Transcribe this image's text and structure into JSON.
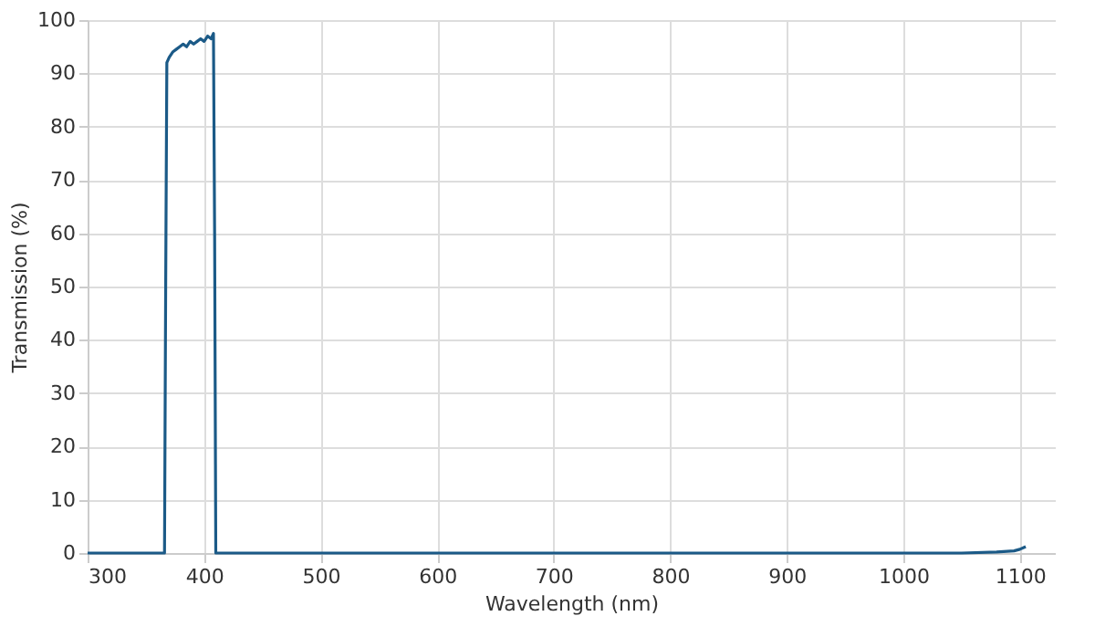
{
  "chart_data": {
    "type": "line",
    "xlabel": "Wavelength (nm)",
    "ylabel": "Transmission (%)",
    "x": [
      300,
      366,
      367,
      368,
      370,
      373,
      376,
      379,
      382,
      385,
      388,
      391,
      394,
      397,
      400,
      403,
      406,
      408,
      409,
      410,
      1050,
      1080,
      1095,
      1100,
      1105
    ],
    "series": [
      {
        "color": "#1b5a87",
        "values": [
          0,
          0,
          50,
          92,
          93,
          94,
          94.5,
          95,
          95.5,
          95,
          96,
          95.5,
          96,
          96.5,
          96,
          97,
          96.5,
          97.5,
          60,
          0,
          0,
          0.2,
          0.4,
          0.7,
          1.2
        ]
      }
    ],
    "xlim": [
      300,
      1130
    ],
    "xticks": [
      300,
      400,
      500,
      600,
      700,
      800,
      900,
      1000,
      1100
    ],
    "ylim": [
      0,
      100
    ],
    "yticks": [
      0,
      10,
      20,
      30,
      40,
      50,
      60,
      70,
      80,
      90,
      100
    ],
    "grid": true,
    "legend": false,
    "marker": "none",
    "line_style": "solid"
  }
}
